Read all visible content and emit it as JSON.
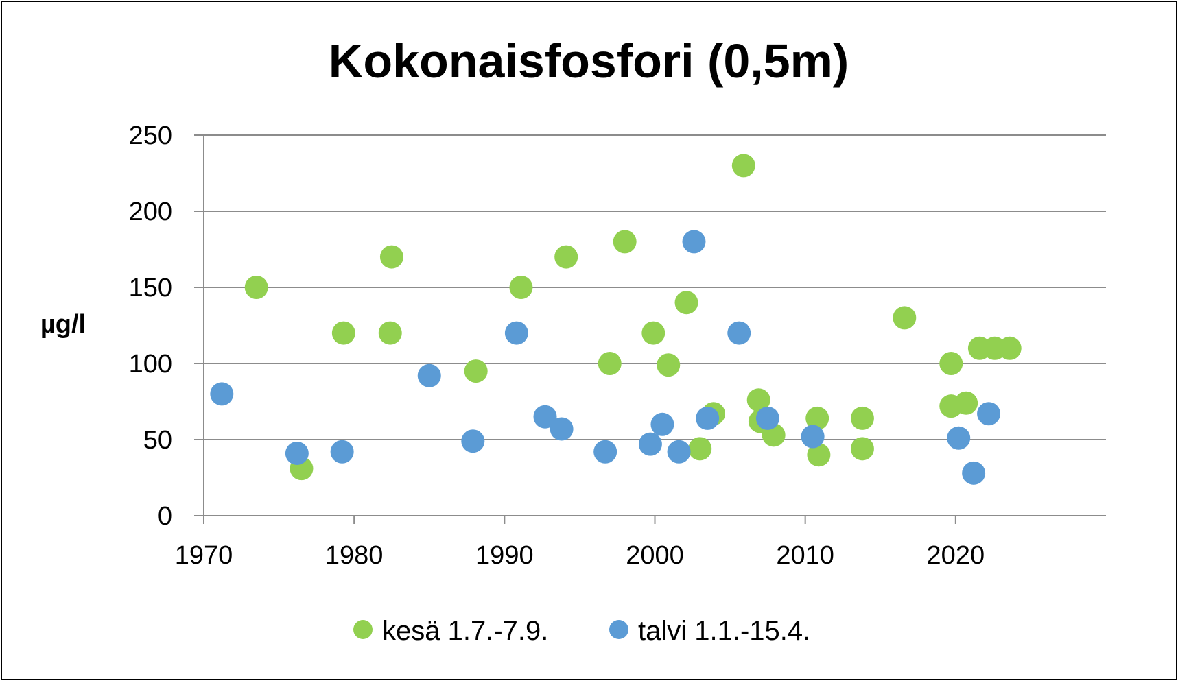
{
  "chart_data": {
    "type": "scatter",
    "title": "Kokonaisfosfori (0,5m)",
    "ylabel": "µg/l",
    "xlabel": "",
    "xlim": [
      1970,
      2029
    ],
    "ylim": [
      0,
      250
    ],
    "xticks": [
      "1970",
      "1980",
      "1990",
      "2000",
      "2010",
      "2020"
    ],
    "yticks": [
      "0",
      "50",
      "100",
      "150",
      "200",
      "250"
    ],
    "grid": "horizontal",
    "legend_position": "bottom",
    "series": [
      {
        "name": "kesä 1.7.-7.9.",
        "color": "#92d050",
        "points": [
          [
            1973.5,
            150
          ],
          [
            1976.5,
            31
          ],
          [
            1979.3,
            120
          ],
          [
            1982.4,
            120
          ],
          [
            1982.5,
            170
          ],
          [
            1988.1,
            95
          ],
          [
            1991.1,
            150
          ],
          [
            1994.1,
            170
          ],
          [
            1997.0,
            100
          ],
          [
            1998.0,
            180
          ],
          [
            1999.9,
            120
          ],
          [
            2000.9,
            99
          ],
          [
            2002.1,
            140
          ],
          [
            2003.0,
            44
          ],
          [
            2003.9,
            67
          ],
          [
            2005.9,
            230
          ],
          [
            2006.9,
            76
          ],
          [
            2007.0,
            62
          ],
          [
            2007.9,
            53
          ],
          [
            2010.8,
            64
          ],
          [
            2010.9,
            40
          ],
          [
            2013.8,
            64
          ],
          [
            2013.8,
            44
          ],
          [
            2016.6,
            130
          ],
          [
            2019.7,
            100
          ],
          [
            2019.7,
            72
          ],
          [
            2020.7,
            74
          ],
          [
            2021.6,
            110
          ],
          [
            2022.6,
            110
          ],
          [
            2023.6,
            110
          ]
        ]
      },
      {
        "name": "talvi 1.1.-15.4.",
        "color": "#5b9bd5",
        "points": [
          [
            1971.2,
            80
          ],
          [
            1976.2,
            41
          ],
          [
            1979.2,
            42
          ],
          [
            1985.0,
            92
          ],
          [
            1987.9,
            49
          ],
          [
            1990.8,
            120
          ],
          [
            1992.7,
            65
          ],
          [
            1993.8,
            57
          ],
          [
            1996.7,
            42
          ],
          [
            1999.7,
            47
          ],
          [
            2000.5,
            60
          ],
          [
            2001.6,
            42
          ],
          [
            2002.6,
            180
          ],
          [
            2003.5,
            64
          ],
          [
            2005.6,
            120
          ],
          [
            2007.5,
            64
          ],
          [
            2010.5,
            52
          ],
          [
            2020.2,
            51
          ],
          [
            2021.2,
            28
          ],
          [
            2022.2,
            67
          ]
        ]
      }
    ]
  }
}
